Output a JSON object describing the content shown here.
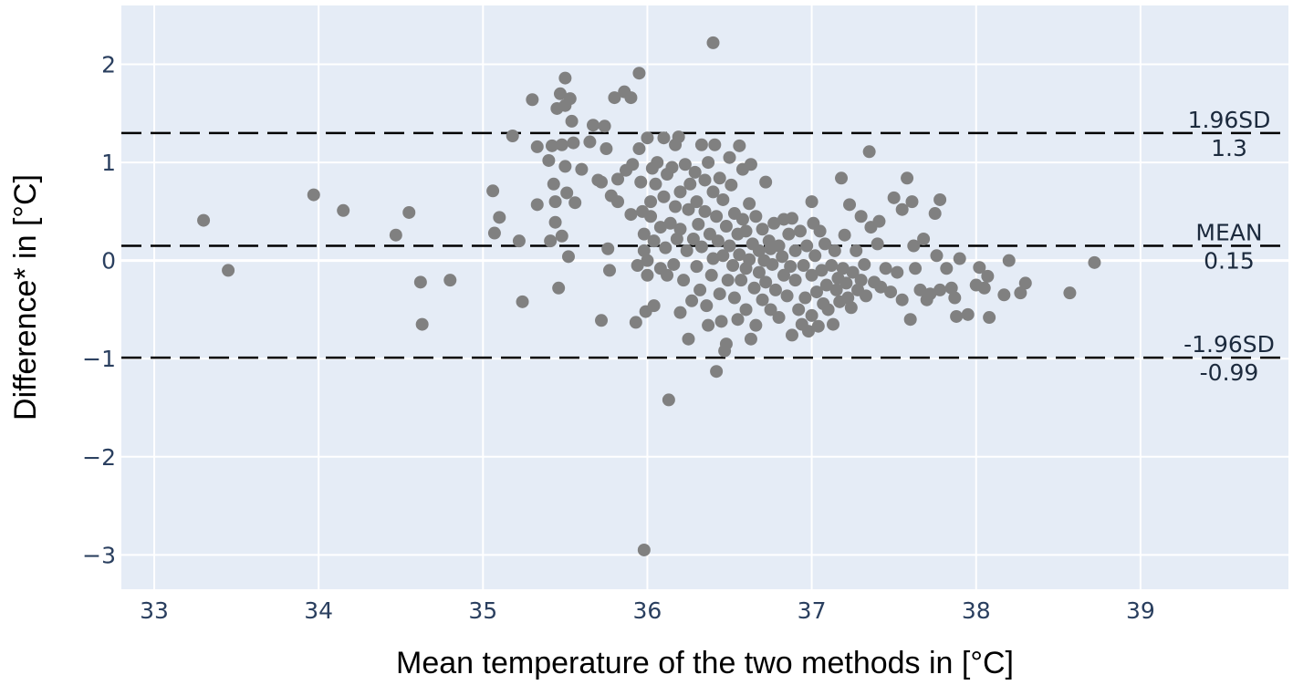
{
  "chart_data": {
    "type": "scatter",
    "title": "",
    "xlabel": "Mean temperature of the two methods in [°C]",
    "ylabel": "Difference* in [°C]",
    "xlim": [
      32.8,
      39.9
    ],
    "ylim": [
      -3.35,
      2.6
    ],
    "x_ticks": [
      33,
      34,
      35,
      36,
      37,
      38,
      39
    ],
    "x_tick_labels": [
      "33",
      "34",
      "35",
      "36",
      "37",
      "38",
      "39"
    ],
    "y_ticks": [
      -3,
      -2,
      -1,
      0,
      1,
      2
    ],
    "y_tick_labels": [
      "−3",
      "−2",
      "−1",
      "0",
      "1",
      "2"
    ],
    "grid": true,
    "background": "#e5ecf6",
    "marker_color": "#808080",
    "reference_lines": [
      {
        "name": "1.96SD",
        "value_label": "1.3",
        "y": 1.3
      },
      {
        "name": "MEAN",
        "value_label": "0.15",
        "y": 0.15
      },
      {
        "name": "-1.96SD",
        "value_label": "-0.99",
        "y": -0.99
      }
    ],
    "points": [
      [
        33.3,
        0.41
      ],
      [
        33.45,
        -0.1
      ],
      [
        33.97,
        0.67
      ],
      [
        34.15,
        0.51
      ],
      [
        34.47,
        0.26
      ],
      [
        34.55,
        0.49
      ],
      [
        34.62,
        -0.22
      ],
      [
        34.63,
        -0.65
      ],
      [
        34.8,
        -0.2
      ],
      [
        35.06,
        0.71
      ],
      [
        35.07,
        0.28
      ],
      [
        35.1,
        0.44
      ],
      [
        35.18,
        1.27
      ],
      [
        35.22,
        0.2
      ],
      [
        35.24,
        -0.42
      ],
      [
        35.3,
        1.64
      ],
      [
        35.33,
        1.16
      ],
      [
        35.33,
        0.57
      ],
      [
        35.4,
        1.02
      ],
      [
        35.41,
        0.2
      ],
      [
        35.42,
        1.17
      ],
      [
        35.43,
        0.78
      ],
      [
        35.44,
        0.39
      ],
      [
        35.44,
        0.6
      ],
      [
        35.45,
        1.55
      ],
      [
        35.46,
        -0.28
      ],
      [
        35.47,
        1.7
      ],
      [
        35.48,
        1.18
      ],
      [
        35.48,
        0.25
      ],
      [
        35.5,
        1.86
      ],
      [
        35.5,
        1.58
      ],
      [
        35.5,
        0.96
      ],
      [
        35.51,
        0.69
      ],
      [
        35.52,
        0.04
      ],
      [
        35.53,
        1.65
      ],
      [
        35.54,
        1.42
      ],
      [
        35.55,
        1.2
      ],
      [
        35.56,
        0.59
      ],
      [
        35.6,
        0.93
      ],
      [
        35.65,
        1.21
      ],
      [
        35.67,
        1.38
      ],
      [
        35.7,
        0.82
      ],
      [
        35.72,
        0.8
      ],
      [
        35.72,
        -0.61
      ],
      [
        35.74,
        1.37
      ],
      [
        35.75,
        1.14
      ],
      [
        35.76,
        0.12
      ],
      [
        35.77,
        -0.1
      ],
      [
        35.78,
        0.66
      ],
      [
        35.8,
        1.66
      ],
      [
        35.82,
        0.83
      ],
      [
        35.82,
        0.6
      ],
      [
        35.86,
        1.72
      ],
      [
        35.87,
        0.92
      ],
      [
        35.9,
        1.66
      ],
      [
        35.9,
        0.47
      ],
      [
        35.91,
        0.98
      ],
      [
        35.93,
        -0.63
      ],
      [
        35.94,
        -0.05
      ],
      [
        35.95,
        1.91
      ],
      [
        35.95,
        1.14
      ],
      [
        35.96,
        0.8
      ],
      [
        35.97,
        0.5
      ],
      [
        35.98,
        0.27
      ],
      [
        35.98,
        0.1
      ],
      [
        35.99,
        -0.52
      ],
      [
        36.0,
        -0.15
      ],
      [
        36.0,
        1.25
      ],
      [
        36.0,
        0.0
      ],
      [
        36.02,
        0.6
      ],
      [
        36.02,
        0.45
      ],
      [
        36.03,
        0.94
      ],
      [
        36.04,
        0.2
      ],
      [
        36.04,
        -0.46
      ],
      [
        36.05,
        0.78
      ],
      [
        36.06,
        1.0
      ],
      [
        36.08,
        0.34
      ],
      [
        36.08,
        -0.08
      ],
      [
        36.1,
        1.25
      ],
      [
        36.1,
        0.65
      ],
      [
        36.11,
        0.13
      ],
      [
        36.12,
        -0.15
      ],
      [
        36.12,
        0.88
      ],
      [
        36.13,
        -1.42
      ],
      [
        36.14,
        0.38
      ],
      [
        36.15,
        0.95
      ],
      [
        36.16,
        -0.04
      ],
      [
        36.17,
        1.18
      ],
      [
        36.17,
        0.55
      ],
      [
        36.18,
        0.22
      ],
      [
        36.19,
        1.26
      ],
      [
        36.2,
        -0.53
      ],
      [
        36.2,
        0.7
      ],
      [
        36.2,
        0.32
      ],
      [
        36.22,
        -0.2
      ],
      [
        36.23,
        0.98
      ],
      [
        36.24,
        0.1
      ],
      [
        36.25,
        -0.8
      ],
      [
        36.25,
        0.52
      ],
      [
        36.26,
        0.78
      ],
      [
        36.27,
        -0.41
      ],
      [
        36.28,
        0.22
      ],
      [
        36.29,
        0.9
      ],
      [
        36.3,
        -0.06
      ],
      [
        36.3,
        0.6
      ],
      [
        36.31,
        0.37
      ],
      [
        36.32,
        -0.3
      ],
      [
        36.33,
        1.18
      ],
      [
        36.33,
        0.14
      ],
      [
        36.35,
        0.82
      ],
      [
        36.35,
        0.5
      ],
      [
        36.36,
        -0.46
      ],
      [
        36.37,
        -0.66
      ],
      [
        36.37,
        1.0
      ],
      [
        36.38,
        0.27
      ],
      [
        36.39,
        -0.15
      ],
      [
        36.4,
        0.7
      ],
      [
        36.4,
        0.02
      ],
      [
        36.4,
        2.22
      ],
      [
        36.41,
        1.18
      ],
      [
        36.42,
        -1.13
      ],
      [
        36.42,
        0.45
      ],
      [
        36.43,
        0.2
      ],
      [
        36.44,
        0.84
      ],
      [
        36.44,
        -0.34
      ],
      [
        36.45,
        -0.62
      ],
      [
        36.46,
        0.62
      ],
      [
        36.46,
        0.05
      ],
      [
        36.47,
        -0.92
      ],
      [
        36.48,
        -0.85
      ],
      [
        36.48,
        0.35
      ],
      [
        36.49,
        -0.2
      ],
      [
        36.5,
        1.05
      ],
      [
        36.5,
        0.15
      ],
      [
        36.51,
        0.77
      ],
      [
        36.52,
        -0.05
      ],
      [
        36.53,
        0.48
      ],
      [
        36.53,
        -0.38
      ],
      [
        36.55,
        0.27
      ],
      [
        36.55,
        -0.6
      ],
      [
        36.56,
        1.17
      ],
      [
        36.56,
        0.06
      ],
      [
        36.57,
        -0.2
      ],
      [
        36.58,
        0.42
      ],
      [
        36.58,
        0.93
      ],
      [
        36.6,
        0.3
      ],
      [
        36.6,
        -0.08
      ],
      [
        36.6,
        -0.5
      ],
      [
        36.62,
        0.58
      ],
      [
        36.62,
        0.01
      ],
      [
        36.63,
        -0.8
      ],
      [
        36.63,
        0.98
      ],
      [
        36.64,
        0.17
      ],
      [
        36.65,
        -0.28
      ],
      [
        36.66,
        -0.66
      ],
      [
        36.66,
        0.45
      ],
      [
        36.68,
        0.1
      ],
      [
        36.68,
        -0.12
      ],
      [
        36.7,
        0.32
      ],
      [
        36.7,
        -0.4
      ],
      [
        36.71,
        0.0
      ],
      [
        36.72,
        0.8
      ],
      [
        36.72,
        -0.22
      ],
      [
        36.74,
        0.2
      ],
      [
        36.75,
        0.12
      ],
      [
        36.75,
        -0.5
      ],
      [
        36.76,
        -0.04
      ],
      [
        36.77,
        0.38
      ],
      [
        36.78,
        -0.3
      ],
      [
        36.8,
        0.15
      ],
      [
        36.8,
        -0.58
      ],
      [
        36.82,
        0.04
      ],
      [
        36.83,
        0.42
      ],
      [
        36.83,
        -0.15
      ],
      [
        36.85,
        -0.36
      ],
      [
        36.86,
        0.27
      ],
      [
        36.87,
        -0.06
      ],
      [
        36.88,
        -0.76
      ],
      [
        36.88,
        0.43
      ],
      [
        36.9,
        0.1
      ],
      [
        36.9,
        -0.2
      ],
      [
        36.92,
        -0.5
      ],
      [
        36.93,
        0.3
      ],
      [
        36.94,
        -0.65
      ],
      [
        36.95,
        -0.05
      ],
      [
        36.96,
        -0.38
      ],
      [
        36.97,
        0.15
      ],
      [
        36.98,
        -0.72
      ],
      [
        37.0,
        0.6
      ],
      [
        37.0,
        -0.15
      ],
      [
        37.0,
        -0.56
      ],
      [
        37.01,
        0.38
      ],
      [
        37.02,
        0.05
      ],
      [
        37.03,
        -0.32
      ],
      [
        37.04,
        -0.67
      ],
      [
        37.05,
        0.3
      ],
      [
        37.06,
        -0.1
      ],
      [
        37.07,
        -0.44
      ],
      [
        37.08,
        0.17
      ],
      [
        37.09,
        -0.25
      ],
      [
        37.1,
        -0.5
      ],
      [
        37.12,
        -0.05
      ],
      [
        37.13,
        -0.65
      ],
      [
        37.14,
        0.1
      ],
      [
        37.15,
        -0.3
      ],
      [
        37.16,
        -0.18
      ],
      [
        37.17,
        -0.42
      ],
      [
        37.18,
        0.84
      ],
      [
        37.19,
        -0.08
      ],
      [
        37.2,
        0.26
      ],
      [
        37.21,
        -0.23
      ],
      [
        37.22,
        -0.38
      ],
      [
        37.23,
        0.57
      ],
      [
        37.24,
        -0.48
      ],
      [
        37.25,
        -0.12
      ],
      [
        37.27,
        0.1
      ],
      [
        37.28,
        -0.3
      ],
      [
        37.3,
        0.45
      ],
      [
        37.3,
        -0.2
      ],
      [
        37.32,
        -0.04
      ],
      [
        37.33,
        -0.36
      ],
      [
        37.35,
        1.11
      ],
      [
        37.36,
        0.34
      ],
      [
        37.38,
        -0.22
      ],
      [
        37.4,
        0.17
      ],
      [
        37.41,
        0.4
      ],
      [
        37.42,
        -0.27
      ],
      [
        37.45,
        -0.08
      ],
      [
        37.48,
        -0.32
      ],
      [
        37.5,
        0.64
      ],
      [
        37.52,
        -0.12
      ],
      [
        37.55,
        0.52
      ],
      [
        37.55,
        -0.4
      ],
      [
        37.58,
        0.84
      ],
      [
        37.6,
        -0.6
      ],
      [
        37.61,
        0.6
      ],
      [
        37.62,
        0.15
      ],
      [
        37.63,
        -0.08
      ],
      [
        37.66,
        -0.3
      ],
      [
        37.68,
        0.22
      ],
      [
        37.7,
        -0.4
      ],
      [
        37.72,
        -0.34
      ],
      [
        37.75,
        0.48
      ],
      [
        37.76,
        0.05
      ],
      [
        37.78,
        0.62
      ],
      [
        37.78,
        -0.3
      ],
      [
        37.82,
        -0.08
      ],
      [
        37.85,
        -0.28
      ],
      [
        37.87,
        -0.38
      ],
      [
        37.88,
        -0.57
      ],
      [
        37.9,
        0.02
      ],
      [
        37.95,
        -0.55
      ],
      [
        38.0,
        -0.25
      ],
      [
        38.02,
        -0.07
      ],
      [
        38.05,
        -0.28
      ],
      [
        38.07,
        -0.16
      ],
      [
        38.08,
        -0.58
      ],
      [
        38.17,
        -0.35
      ],
      [
        38.2,
        0.0
      ],
      [
        38.27,
        -0.33
      ],
      [
        38.3,
        -0.23
      ],
      [
        38.57,
        -0.33
      ],
      [
        38.72,
        -0.02
      ],
      [
        35.98,
        -2.95
      ]
    ]
  }
}
